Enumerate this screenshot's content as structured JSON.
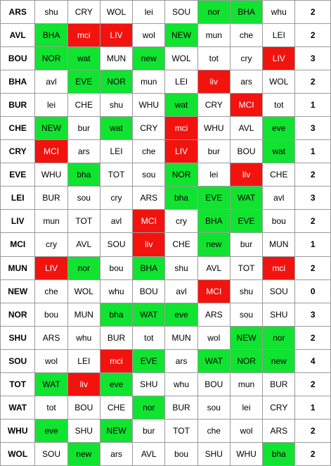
{
  "colors": {
    "good": "#11e331",
    "bad": "#f2130f",
    "neutral": "#ffffff",
    "grid": "#9a9a9a"
  },
  "rows": [
    {
      "team": "ARS",
      "fixtures": [
        {
          "t": "shu",
          "s": ""
        },
        {
          "t": "CRY",
          "s": ""
        },
        {
          "t": "WOL",
          "s": ""
        },
        {
          "t": "lei",
          "s": ""
        },
        {
          "t": "SOU",
          "s": ""
        },
        {
          "t": "nor",
          "s": "g"
        },
        {
          "t": "BHA",
          "s": "g"
        },
        {
          "t": "whu",
          "s": ""
        }
      ],
      "score": "2"
    },
    {
      "team": "AVL",
      "fixtures": [
        {
          "t": "BHA",
          "s": "g"
        },
        {
          "t": "mci",
          "s": "r"
        },
        {
          "t": "LIV",
          "s": "r"
        },
        {
          "t": "wol",
          "s": ""
        },
        {
          "t": "NEW",
          "s": "g"
        },
        {
          "t": "mun",
          "s": ""
        },
        {
          "t": "che",
          "s": ""
        },
        {
          "t": "LEI",
          "s": ""
        }
      ],
      "score": "2"
    },
    {
      "team": "BOU",
      "fixtures": [
        {
          "t": "NOR",
          "s": "g"
        },
        {
          "t": "wat",
          "s": "g"
        },
        {
          "t": "MUN",
          "s": ""
        },
        {
          "t": "new",
          "s": "g"
        },
        {
          "t": "WOL",
          "s": ""
        },
        {
          "t": "tot",
          "s": ""
        },
        {
          "t": "cry",
          "s": ""
        },
        {
          "t": "LIV",
          "s": "r"
        }
      ],
      "score": "3"
    },
    {
      "team": "BHA",
      "fixtures": [
        {
          "t": "avl",
          "s": ""
        },
        {
          "t": "EVE",
          "s": "g"
        },
        {
          "t": "NOR",
          "s": "g"
        },
        {
          "t": "mun",
          "s": ""
        },
        {
          "t": "LEI",
          "s": ""
        },
        {
          "t": "liv",
          "s": "r"
        },
        {
          "t": "ars",
          "s": ""
        },
        {
          "t": "WOL",
          "s": ""
        }
      ],
      "score": "2"
    },
    {
      "team": "BUR",
      "fixtures": [
        {
          "t": "lei",
          "s": ""
        },
        {
          "t": "CHE",
          "s": ""
        },
        {
          "t": "shu",
          "s": ""
        },
        {
          "t": "WHU",
          "s": ""
        },
        {
          "t": "wat",
          "s": "g"
        },
        {
          "t": "CRY",
          "s": ""
        },
        {
          "t": "MCI",
          "s": "r"
        },
        {
          "t": "tot",
          "s": ""
        }
      ],
      "score": "1"
    },
    {
      "team": "CHE",
      "fixtures": [
        {
          "t": "NEW",
          "s": "g"
        },
        {
          "t": "bur",
          "s": ""
        },
        {
          "t": "wat",
          "s": "g"
        },
        {
          "t": "CRY",
          "s": ""
        },
        {
          "t": "mci",
          "s": "r"
        },
        {
          "t": "WHU",
          "s": ""
        },
        {
          "t": "AVL",
          "s": ""
        },
        {
          "t": "eve",
          "s": "g"
        }
      ],
      "score": "3"
    },
    {
      "team": "CRY",
      "fixtures": [
        {
          "t": "MCI",
          "s": "r"
        },
        {
          "t": "ars",
          "s": ""
        },
        {
          "t": "LEI",
          "s": ""
        },
        {
          "t": "che",
          "s": ""
        },
        {
          "t": "LIV",
          "s": "r"
        },
        {
          "t": "bur",
          "s": ""
        },
        {
          "t": "BOU",
          "s": ""
        },
        {
          "t": "wat",
          "s": "g"
        }
      ],
      "score": "1"
    },
    {
      "team": "EVE",
      "fixtures": [
        {
          "t": "WHU",
          "s": ""
        },
        {
          "t": "bha",
          "s": "g"
        },
        {
          "t": "TOT",
          "s": ""
        },
        {
          "t": "sou",
          "s": ""
        },
        {
          "t": "NOR",
          "s": "g"
        },
        {
          "t": "lei",
          "s": ""
        },
        {
          "t": "liv",
          "s": "r"
        },
        {
          "t": "CHE",
          "s": ""
        }
      ],
      "score": "2"
    },
    {
      "team": "LEI",
      "fixtures": [
        {
          "t": "BUR",
          "s": ""
        },
        {
          "t": "sou",
          "s": ""
        },
        {
          "t": "cry",
          "s": ""
        },
        {
          "t": "ARS",
          "s": ""
        },
        {
          "t": "bha",
          "s": "g"
        },
        {
          "t": "EVE",
          "s": "g"
        },
        {
          "t": "WAT",
          "s": "g"
        },
        {
          "t": "avl",
          "s": ""
        }
      ],
      "score": "3"
    },
    {
      "team": "LIV",
      "fixtures": [
        {
          "t": "mun",
          "s": ""
        },
        {
          "t": "TOT",
          "s": ""
        },
        {
          "t": "avl",
          "s": ""
        },
        {
          "t": "MCI",
          "s": "r"
        },
        {
          "t": "cry",
          "s": ""
        },
        {
          "t": "BHA",
          "s": "g"
        },
        {
          "t": "EVE",
          "s": "g"
        },
        {
          "t": "bou",
          "s": ""
        }
      ],
      "score": "2"
    },
    {
      "team": "MCI",
      "fixtures": [
        {
          "t": "cry",
          "s": ""
        },
        {
          "t": "AVL",
          "s": ""
        },
        {
          "t": "SOU",
          "s": ""
        },
        {
          "t": "liv",
          "s": "r"
        },
        {
          "t": "CHE",
          "s": ""
        },
        {
          "t": "new",
          "s": "g"
        },
        {
          "t": "bur",
          "s": ""
        },
        {
          "t": "MUN",
          "s": ""
        }
      ],
      "score": "1"
    },
    {
      "team": "MUN",
      "fixtures": [
        {
          "t": "LIV",
          "s": "r"
        },
        {
          "t": "nor",
          "s": "g"
        },
        {
          "t": "bou",
          "s": ""
        },
        {
          "t": "BHA",
          "s": "g"
        },
        {
          "t": "shu",
          "s": ""
        },
        {
          "t": "AVL",
          "s": ""
        },
        {
          "t": "TOT",
          "s": ""
        },
        {
          "t": "mci",
          "s": "r"
        }
      ],
      "score": "2"
    },
    {
      "team": "NEW",
      "fixtures": [
        {
          "t": "che",
          "s": ""
        },
        {
          "t": "WOL",
          "s": ""
        },
        {
          "t": "whu",
          "s": ""
        },
        {
          "t": "BOU",
          "s": ""
        },
        {
          "t": "avl",
          "s": ""
        },
        {
          "t": "MCI",
          "s": "r"
        },
        {
          "t": "shu",
          "s": ""
        },
        {
          "t": "SOU",
          "s": ""
        }
      ],
      "score": "0"
    },
    {
      "team": "NOR",
      "fixtures": [
        {
          "t": "bou",
          "s": ""
        },
        {
          "t": "MUN",
          "s": ""
        },
        {
          "t": "bha",
          "s": "g"
        },
        {
          "t": "WAT",
          "s": "g"
        },
        {
          "t": "eve",
          "s": "g"
        },
        {
          "t": "ARS",
          "s": ""
        },
        {
          "t": "sou",
          "s": ""
        },
        {
          "t": "SHU",
          "s": ""
        }
      ],
      "score": "3"
    },
    {
      "team": "SHU",
      "fixtures": [
        {
          "t": "ARS",
          "s": ""
        },
        {
          "t": "whu",
          "s": ""
        },
        {
          "t": "BUR",
          "s": ""
        },
        {
          "t": "tot",
          "s": ""
        },
        {
          "t": "MUN",
          "s": ""
        },
        {
          "t": "wol",
          "s": ""
        },
        {
          "t": "NEW",
          "s": "g"
        },
        {
          "t": "nor",
          "s": "g"
        }
      ],
      "score": "2"
    },
    {
      "team": "SOU",
      "fixtures": [
        {
          "t": "wol",
          "s": ""
        },
        {
          "t": "LEI",
          "s": ""
        },
        {
          "t": "mci",
          "s": "r"
        },
        {
          "t": "EVE",
          "s": "g"
        },
        {
          "t": "ars",
          "s": ""
        },
        {
          "t": "WAT",
          "s": "g"
        },
        {
          "t": "NOR",
          "s": "g"
        },
        {
          "t": "new",
          "s": "g"
        }
      ],
      "score": "4"
    },
    {
      "team": "TOT",
      "fixtures": [
        {
          "t": "WAT",
          "s": "g"
        },
        {
          "t": "liv",
          "s": "r"
        },
        {
          "t": "eve",
          "s": "g"
        },
        {
          "t": "SHU",
          "s": ""
        },
        {
          "t": "whu",
          "s": ""
        },
        {
          "t": "BOU",
          "s": ""
        },
        {
          "t": "mun",
          "s": ""
        },
        {
          "t": "BUR",
          "s": ""
        }
      ],
      "score": "2"
    },
    {
      "team": "WAT",
      "fixtures": [
        {
          "t": "tot",
          "s": ""
        },
        {
          "t": "BOU",
          "s": ""
        },
        {
          "t": "CHE",
          "s": ""
        },
        {
          "t": "nor",
          "s": "g"
        },
        {
          "t": "BUR",
          "s": ""
        },
        {
          "t": "sou",
          "s": ""
        },
        {
          "t": "lei",
          "s": ""
        },
        {
          "t": "CRY",
          "s": ""
        }
      ],
      "score": "1"
    },
    {
      "team": "WHU",
      "fixtures": [
        {
          "t": "eve",
          "s": "g"
        },
        {
          "t": "SHU",
          "s": ""
        },
        {
          "t": "NEW",
          "s": "g"
        },
        {
          "t": "bur",
          "s": ""
        },
        {
          "t": "TOT",
          "s": ""
        },
        {
          "t": "che",
          "s": ""
        },
        {
          "t": "wol",
          "s": ""
        },
        {
          "t": "ARS",
          "s": ""
        }
      ],
      "score": "2"
    },
    {
      "team": "WOL",
      "fixtures": [
        {
          "t": "SOU",
          "s": ""
        },
        {
          "t": "new",
          "s": "g"
        },
        {
          "t": "ars",
          "s": ""
        },
        {
          "t": "AVL",
          "s": ""
        },
        {
          "t": "bou",
          "s": ""
        },
        {
          "t": "SHU",
          "s": ""
        },
        {
          "t": "WHU",
          "s": ""
        },
        {
          "t": "bha",
          "s": "g"
        }
      ],
      "score": "2"
    }
  ]
}
